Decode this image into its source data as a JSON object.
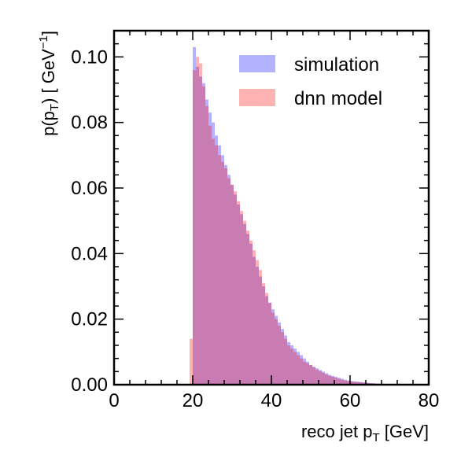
{
  "chart_data": {
    "type": "histogram",
    "xlabel": {
      "main": "reco jet p",
      "sub": "T",
      "unit": " [GeV]"
    },
    "ylabel": {
      "pre": "p(p",
      "sub": "T",
      "mid": ") [ GeV",
      "sup": "−1",
      "post": "]"
    },
    "xlim": [
      0,
      80
    ],
    "ylim": [
      0,
      0.108
    ],
    "xticks": [
      0,
      20,
      40,
      60,
      80
    ],
    "xtick_labels": [
      "0",
      "20",
      "40",
      "60",
      "80"
    ],
    "yticks": [
      0,
      0.02,
      0.04,
      0.06,
      0.08,
      0.1
    ],
    "ytick_labels": [
      "0.00",
      "0.02",
      "0.04",
      "0.06",
      "0.08",
      "0.10"
    ],
    "grid": false,
    "legend_position": "top-right",
    "bin_edges": [
      19.2,
      20.0,
      20.8,
      21.6,
      22.4,
      23.2,
      24.0,
      24.8,
      25.6,
      26.4,
      27.2,
      28.0,
      28.8,
      29.6,
      30.4,
      31.2,
      32.0,
      32.8,
      33.6,
      34.4,
      35.2,
      36.0,
      36.8,
      37.6,
      38.4,
      39.2,
      40.0,
      40.8,
      41.6,
      42.4,
      43.2,
      44.0,
      44.8,
      45.6,
      46.4,
      47.2,
      48.0,
      48.8,
      49.6,
      50.4,
      51.2,
      52.0,
      52.8,
      53.6,
      54.4,
      55.2,
      56.0,
      56.8,
      57.6,
      58.4,
      59.2,
      60.0,
      60.8,
      61.6,
      62.4,
      63.2,
      64.0,
      64.8,
      65.6,
      66.4,
      67.2,
      68.0,
      68.8,
      69.6,
      70.4,
      71.2,
      72.0,
      72.8,
      73.6,
      74.4,
      75.2
    ],
    "series": [
      {
        "name": "simulation",
        "color": "#0000ff",
        "opacity": 0.3,
        "values": [
          0.0,
          0.103,
          0.097,
          0.094,
          0.092,
          0.087,
          0.083,
          0.08,
          0.076,
          0.073,
          0.07,
          0.067,
          0.064,
          0.061,
          0.058,
          0.055,
          0.052,
          0.049,
          0.046,
          0.043,
          0.039,
          0.036,
          0.033,
          0.03,
          0.027,
          0.025,
          0.023,
          0.021,
          0.019,
          0.017,
          0.015,
          0.013,
          0.012,
          0.011,
          0.01,
          0.009,
          0.008,
          0.007,
          0.006,
          0.0055,
          0.005,
          0.0045,
          0.004,
          0.0035,
          0.003,
          0.0027,
          0.0024,
          0.0021,
          0.0018,
          0.0015,
          0.0013,
          0.0011,
          0.001,
          0.0009,
          0.0008,
          0.0007,
          0.0006,
          0.0005,
          0.0004,
          0.0003,
          0.0003,
          0.0002,
          0.0002,
          0.0001,
          0.0001,
          0.0001,
          0.0001,
          0.0001,
          0.0001,
          0.0
        ]
      },
      {
        "name": "dnn model",
        "color": "#ff0000",
        "opacity": 0.3,
        "values": [
          0.014,
          0.096,
          0.1,
          0.098,
          0.091,
          0.085,
          0.079,
          0.075,
          0.073,
          0.07,
          0.068,
          0.066,
          0.063,
          0.061,
          0.059,
          0.056,
          0.053,
          0.05,
          0.047,
          0.044,
          0.041,
          0.038,
          0.035,
          0.031,
          0.028,
          0.025,
          0.022,
          0.02,
          0.018,
          0.016,
          0.014,
          0.012,
          0.011,
          0.01,
          0.009,
          0.008,
          0.007,
          0.0065,
          0.006,
          0.0053,
          0.0046,
          0.0041,
          0.0036,
          0.0031,
          0.0027,
          0.0024,
          0.0021,
          0.0018,
          0.0015,
          0.0013,
          0.0011,
          0.001,
          0.0009,
          0.0008,
          0.0007,
          0.0006,
          0.0005,
          0.0004,
          0.0004,
          0.0003,
          0.0003,
          0.0002,
          0.0002,
          0.0001,
          0.0001,
          0.0001,
          0.0001,
          0.0001,
          0.0,
          0.0
        ]
      }
    ]
  }
}
